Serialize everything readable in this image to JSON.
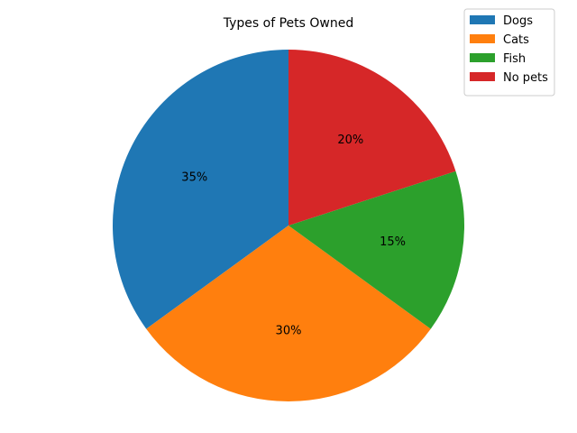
{
  "chart_data": {
    "type": "pie",
    "title": "Types of Pets Owned",
    "categories": [
      "Dogs",
      "Cats",
      "Fish",
      "No pets"
    ],
    "values": [
      35,
      30,
      15,
      20
    ],
    "value_labels": [
      "35%",
      "30%",
      "15%",
      "20%"
    ],
    "colors": [
      "#1f77b4",
      "#ff7f0e",
      "#2ca02c",
      "#d62728"
    ],
    "start_angle_deg": 90,
    "direction": "counterclockwise",
    "legend": {
      "placement": "top-right",
      "entries": [
        "Dogs",
        "Cats",
        "Fish",
        "No pets"
      ]
    }
  }
}
